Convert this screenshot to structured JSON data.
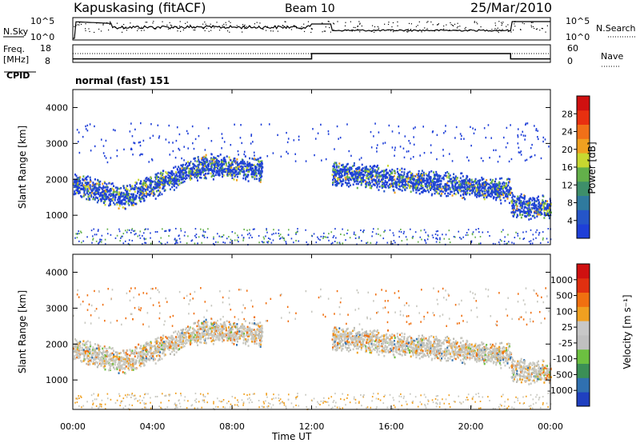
{
  "header": {
    "station": "Kapuskasing (fitACF)",
    "beam": "Beam 10",
    "date": "25/Mar/2010"
  },
  "strip_labels": {
    "nsky": "N.Sky",
    "nsearch": "N.Search",
    "freq_line1": "Freq.",
    "freq_line2": "[MHz]",
    "nave": "Nave",
    "cpid": "CPID",
    "cpid_value": "normal (fast) 151",
    "noise_ticks_left": [
      "10^5",
      "10^0"
    ],
    "noise_ticks_right": [
      "10^5",
      "10^0"
    ],
    "freq_ticks": [
      "18",
      "8"
    ],
    "nave_ticks": [
      "60",
      "0"
    ]
  },
  "x_axis": {
    "label": "Time UT",
    "ticks": [
      "00:00",
      "04:00",
      "08:00",
      "12:00",
      "16:00",
      "20:00",
      "00:00"
    ]
  },
  "panels": [
    {
      "ylabel": "Slant Range [km]",
      "yticks": [
        "1000",
        "2000",
        "3000",
        "4000"
      ],
      "colorbar_title": "Power [dB]",
      "colorbar_ticks": [
        "4",
        "8",
        "12",
        "16",
        "20",
        "24",
        "28"
      ]
    },
    {
      "ylabel": "Slant Range [km]",
      "yticks": [
        "1000",
        "2000",
        "3000",
        "4000"
      ],
      "colorbar_title": "Velocity [m s⁻¹]",
      "colorbar_ticks": [
        "1000",
        "500",
        "100",
        "25",
        "-25",
        "-100",
        "-500",
        "-1000"
      ]
    }
  ],
  "chart_data": {
    "type": "heatmap",
    "x_range_hours": [
      0,
      24
    ],
    "y_range_km": [
      180,
      4500
    ],
    "frequency_mhz_segments": [
      {
        "from_ut": "00:00",
        "to_ut": "12:00",
        "value": 10
      },
      {
        "from_ut": "12:00",
        "to_ut": "22:00",
        "value": 13
      },
      {
        "from_ut": "22:00",
        "to_ut": "24:00",
        "value": 10
      }
    ],
    "echo_regions": [
      {
        "from_h": 0.0,
        "to_h": 2.5,
        "center_km": [
          1900,
          1500
        ]
      },
      {
        "from_h": 2.5,
        "to_h": 6.5,
        "center_km": [
          1500,
          2400
        ]
      },
      {
        "from_h": 6.5,
        "to_h": 9.5,
        "center_km": [
          2400,
          2300
        ]
      },
      {
        "from_h": 13.0,
        "to_h": 22.0,
        "center_km": [
          2200,
          1700
        ]
      },
      {
        "from_h": 22.0,
        "to_h": 24.0,
        "center_km": [
          1300,
          1200
        ]
      }
    ],
    "power_scale_db": [
      0,
      30
    ],
    "velocity_scale_ms": [
      -1000,
      1000
    ]
  }
}
